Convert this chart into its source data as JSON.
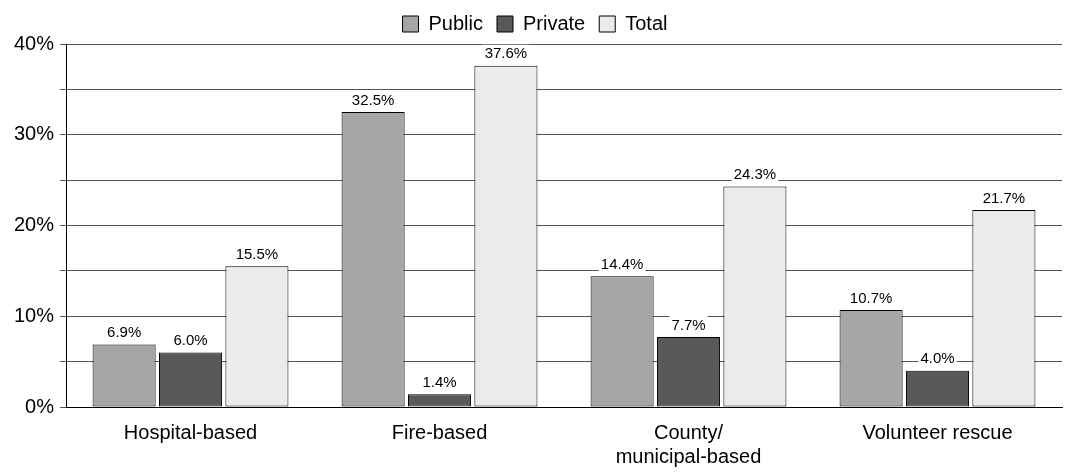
{
  "chart_data": {
    "type": "bar",
    "categories": [
      "Hospital-based",
      "Fire-based",
      "County/ municipal-based",
      "Volunteer rescue"
    ],
    "series": [
      {
        "name": "Public",
        "color": "#a6a6a6",
        "values": [
          6.9,
          32.5,
          14.4,
          10.7
        ],
        "value_labels": [
          "6.9%",
          "32.5%",
          "14.4%",
          "10.7%"
        ]
      },
      {
        "name": "Private",
        "color": "#595959",
        "values": [
          6.0,
          1.4,
          7.7,
          4.0
        ],
        "value_labels": [
          "6.0%",
          "1.4%",
          "7.7%",
          "4.0%"
        ]
      },
      {
        "name": "Total",
        "color": "#ebebeb",
        "values": [
          15.5,
          37.6,
          24.3,
          21.7
        ],
        "value_labels": [
          "15.5%",
          "37.6%",
          "24.3%",
          "21.7%"
        ]
      }
    ],
    "ylim": [
      0,
      40
    ],
    "yticks": [
      {
        "value": 0,
        "label": "0%"
      },
      {
        "value": 5,
        "label": null
      },
      {
        "value": 10,
        "label": "10%"
      },
      {
        "value": 15,
        "label": null
      },
      {
        "value": 20,
        "label": "20%"
      },
      {
        "value": 25,
        "label": null
      },
      {
        "value": 30,
        "label": "30%"
      },
      {
        "value": 35,
        "label": null
      },
      {
        "value": 40,
        "label": "40%"
      }
    ],
    "grid": "y",
    "legend": "top"
  }
}
